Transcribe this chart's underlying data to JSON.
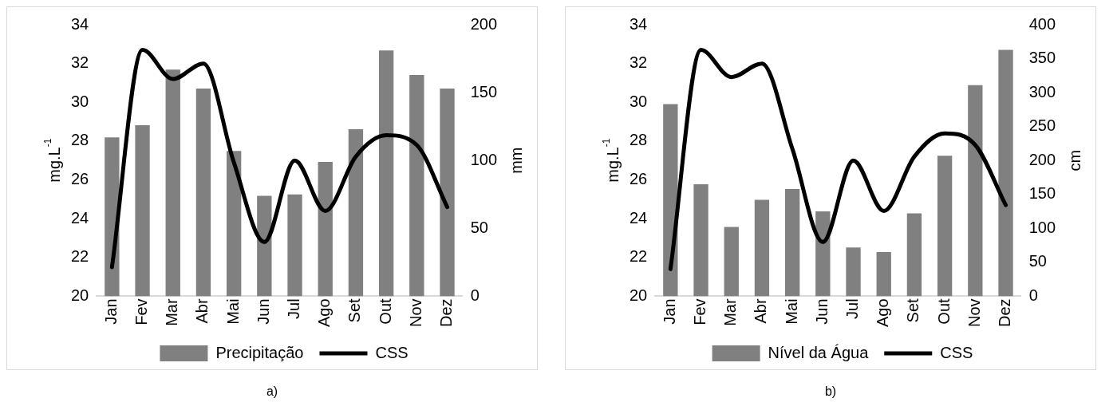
{
  "chart_data": [
    {
      "type": "bar",
      "categories": [
        "Jan",
        "Fev",
        "Mar",
        "Abr",
        "Mai",
        "Jun",
        "Jul",
        "Ago",
        "Set",
        "Out",
        "Nov",
        "Dez"
      ],
      "series": [
        {
          "name": "Precipitação",
          "axis": "y2",
          "color": "#808080",
          "values": [
            117,
            126,
            167,
            153,
            107,
            74,
            75,
            99,
            123,
            181,
            163,
            153
          ]
        },
        {
          "name": "CSS",
          "type": "line",
          "axis": "y",
          "color": "#000000",
          "values": [
            21.5,
            32.7,
            31.2,
            32.0,
            26.9,
            22.8,
            27.0,
            24.4,
            27.2,
            28.3,
            27.8,
            24.6
          ]
        }
      ],
      "ylabel": "mg.L$^{-1}$",
      "y2label": "mm",
      "ylim": [
        20,
        34
      ],
      "yticks": [
        20,
        22,
        24,
        26,
        28,
        30,
        32,
        34
      ],
      "y2lim": [
        0,
        200
      ],
      "y2ticks": [
        0,
        50,
        100,
        150,
        200
      ],
      "legend": "bottom",
      "marker": "none",
      "annotations": [
        "a)"
      ]
    },
    {
      "type": "bar",
      "categories": [
        "Jan",
        "Fev",
        "Mar",
        "Abr",
        "Mai",
        "Jun",
        "Jul",
        "Ago",
        "Set",
        "Out",
        "Nov",
        "Dez"
      ],
      "series": [
        {
          "name": "Nível da Água",
          "axis": "y2",
          "color": "#808080",
          "values": [
            283,
            165,
            102,
            142,
            158,
            125,
            72,
            65,
            122,
            207,
            311,
            363
          ]
        },
        {
          "name": "CSS",
          "type": "line",
          "axis": "y",
          "color": "#000000",
          "values": [
            21.4,
            32.7,
            31.3,
            32.0,
            27.6,
            22.8,
            27.0,
            24.4,
            27.2,
            28.4,
            27.8,
            24.7
          ]
        }
      ],
      "ylabel": "mg.L$^{-1}$",
      "y2label": "cm",
      "ylim": [
        20,
        34
      ],
      "yticks": [
        20,
        22,
        24,
        26,
        28,
        30,
        32,
        34
      ],
      "y2lim": [
        0,
        400
      ],
      "y2ticks": [
        0,
        50,
        100,
        150,
        200,
        250,
        300,
        350,
        400
      ],
      "legend": "bottom",
      "marker": "none",
      "annotations": [
        "b)"
      ]
    }
  ]
}
